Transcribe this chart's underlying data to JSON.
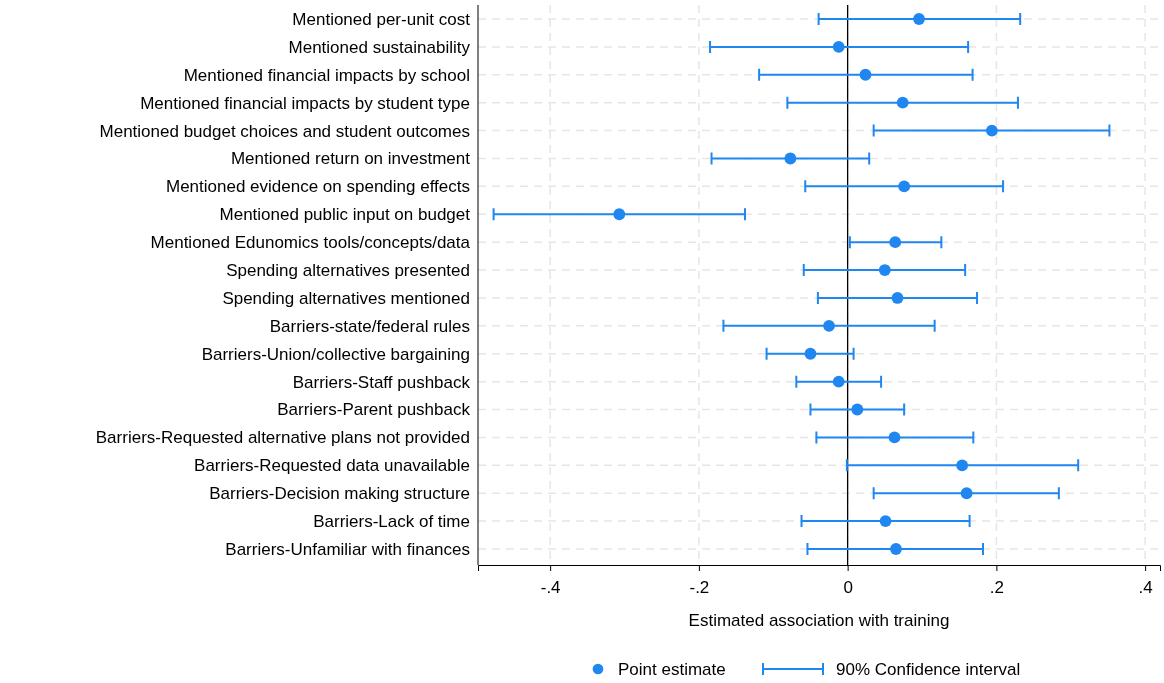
{
  "chart_data": {
    "type": "scatter",
    "orientation": "horizontal",
    "categories": [
      "Mentioned per-unit cost",
      "Mentioned sustainability",
      "Mentioned financial impacts by school",
      "Mentioned financial impacts by student type",
      "Mentioned budget choices and student outcomes",
      "Mentioned return on investment",
      "Mentioned evidence on spending effects",
      "Mentioned public input on budget",
      "Mentioned Edunomics tools/concepts/data",
      "Spending alternatives presented",
      "Spending alternatives mentioned",
      "Barriers-state/federal rules",
      "Barriers-Union/collective bargaining",
      "Barriers-Staff pushback",
      "Barriers-Parent pushback",
      "Barriers-Requested alternative plans not provided",
      "Barriers-Requested data unavailable",
      "Barriers-Decision making structure",
      "Barriers-Lack of time",
      "Barriers-Unfamiliar with finances"
    ],
    "series": [
      {
        "name": "Point estimate",
        "color": "#1f87ef",
        "values": [
          0.096,
          -0.012,
          0.024,
          0.074,
          0.194,
          -0.077,
          0.076,
          -0.307,
          0.064,
          0.05,
          0.067,
          -0.025,
          -0.05,
          -0.012,
          0.013,
          0.063,
          0.154,
          0.16,
          0.051,
          0.065
        ],
        "errors": [
          [
            -0.039,
            0.232
          ],
          [
            -0.185,
            0.162
          ],
          [
            -0.119,
            0.168
          ],
          [
            -0.081,
            0.229
          ],
          [
            0.035,
            0.352
          ],
          [
            -0.183,
            0.029
          ],
          [
            -0.057,
            0.209
          ],
          [
            -0.476,
            -0.138
          ],
          [
            0.003,
            0.126
          ],
          [
            -0.059,
            0.158
          ],
          [
            -0.04,
            0.174
          ],
          [
            -0.167,
            0.117
          ],
          [
            -0.109,
            0.008
          ],
          [
            -0.069,
            0.045
          ],
          [
            -0.05,
            0.076
          ],
          [
            -0.042,
            0.169
          ],
          [
            -0.001,
            0.31
          ],
          [
            0.035,
            0.284
          ],
          [
            -0.062,
            0.164
          ],
          [
            -0.054,
            0.182
          ]
        ]
      }
    ],
    "xlim": [
      -0.497,
      0.42
    ],
    "xticks": [
      {
        "value": -0.4,
        "label": "-.4"
      },
      {
        "value": -0.2,
        "label": "-.2"
      },
      {
        "value": 0,
        "label": "0"
      },
      {
        "value": 0.2,
        "label": ".2"
      },
      {
        "value": 0.4,
        "label": ".4"
      }
    ],
    "xlabel": "Estimated association with training",
    "ref_lines": [
      {
        "axis": "x",
        "value": 0,
        "color": "#000000"
      }
    ],
    "annotations": [
      "90% Confidence interval"
    ],
    "grid": true,
    "legend": "bottom",
    "marker": "circle"
  }
}
